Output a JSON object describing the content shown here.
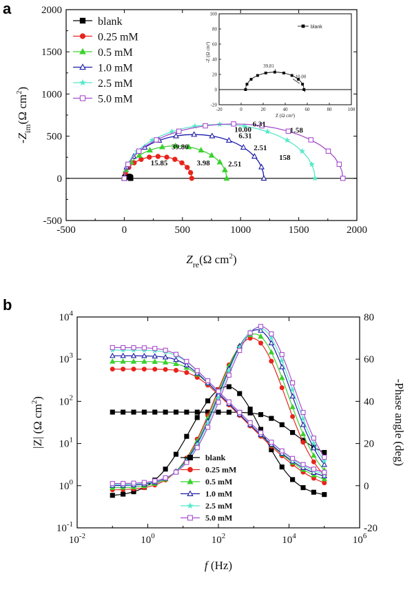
{
  "panel_labels": [
    "a",
    "b"
  ],
  "chart_data": [
    {
      "type": "scatter",
      "id": "a",
      "xlim": [
        -500,
        2000
      ],
      "ylim": [
        -500,
        2000
      ],
      "x_ticks": [
        "-500",
        "0",
        "500",
        "1000",
        "1500",
        "2000"
      ],
      "y_ticks": [
        "-500",
        "0",
        "500",
        "1000",
        "1500",
        "2000"
      ],
      "xlabel": {
        "main": "Z",
        "sub": "re",
        "unit": "(Ω  cm",
        "sup": "2",
        "close": ")"
      },
      "ylabel": {
        "main": "-Z",
        "sub": "im",
        "unit": "(Ω  cm",
        "sup": "2",
        "close": ")"
      },
      "legend": {
        "position": "top-left",
        "entries": [
          "blank",
          "0.25 mM",
          "0.5 mM",
          "1.0 mM",
          "2.5 mM",
          "5.0 mM"
        ]
      },
      "series": [
        {
          "name": "blank",
          "color": "#000000",
          "marker": "square-filled",
          "r0": 2,
          "r1": 55,
          "peak": 24
        },
        {
          "name": "0.25 mM",
          "color": "#e8241c",
          "marker": "circle-filled",
          "r0": 0,
          "r1": 580,
          "peak": 260
        },
        {
          "name": "0.5 mM",
          "color": "#3bd12e",
          "marker": "triangle-filled",
          "r0": 0,
          "r1": 880,
          "peak": 385
        },
        {
          "name": "1.0 mM",
          "color": "#1a1aa8",
          "marker": "triangle-open",
          "r0": 0,
          "r1": 1200,
          "peak": 520
        },
        {
          "name": "2.5 mM",
          "color": "#55e8c8",
          "marker": "star",
          "r0": 0,
          "r1": 1640,
          "peak": 640
        },
        {
          "name": "5.0 mM",
          "color": "#a64dcc",
          "marker": "square-open",
          "r0": 0,
          "r1": 1880,
          "peak": 645
        }
      ],
      "annotations": [
        {
          "text": "10.00",
          "x": 1020,
          "y": 550
        },
        {
          "text": "6.31",
          "x": 1160,
          "y": 615
        },
        {
          "text": "6.31",
          "x": 1040,
          "y": 475
        },
        {
          "text": "1.58",
          "x": 1480,
          "y": 540
        },
        {
          "text": "2.51",
          "x": 1170,
          "y": 335
        },
        {
          "text": "158",
          "x": 1380,
          "y": 220
        },
        {
          "text": "39.80",
          "x": 480,
          "y": 345
        },
        {
          "text": "15.85",
          "x": 300,
          "y": 155
        },
        {
          "text": "3.98",
          "x": 680,
          "y": 155
        },
        {
          "text": "2.51",
          "x": 950,
          "y": 140
        }
      ],
      "inset": {
        "xlim": [
          -20,
          100
        ],
        "ylim": [
          -20,
          100
        ],
        "x_ticks": [
          "-20",
          "0",
          "20",
          "40",
          "60",
          "80",
          "100"
        ],
        "y_ticks": [
          "-20",
          "0",
          "20",
          "40",
          "60",
          "80",
          "100"
        ],
        "xlabel": "Z (Ω  cm²)",
        "ylabel": "-Z (Ω cm²)",
        "legend": "blank",
        "series": {
          "name": "blank",
          "r0": 4,
          "r1": 57,
          "peak": 23
        },
        "annotations": [
          {
            "text": "39.81",
            "x": 25,
            "y": 29
          },
          {
            "text": "10.00",
            "x": 54,
            "y": 15
          }
        ]
      }
    },
    {
      "type": "line",
      "id": "b",
      "xscale": "log",
      "xlim": [
        0.01,
        1000000
      ],
      "x_ticks": [
        {
          "base": "10",
          "exp": "-2"
        },
        {
          "base": "10",
          "exp": "0"
        },
        {
          "base": "10",
          "exp": "2"
        },
        {
          "base": "10",
          "exp": "4"
        },
        {
          "base": "10",
          "exp": "6"
        }
      ],
      "yscale_left": "log",
      "ylim_left": [
        0.1,
        10000
      ],
      "y_ticks_left": [
        {
          "base": "10",
          "exp": "-1"
        },
        {
          "base": "10",
          "exp": "0"
        },
        {
          "base": "10",
          "exp": "1"
        },
        {
          "base": "10",
          "exp": "2"
        },
        {
          "base": "10",
          "exp": "3"
        },
        {
          "base": "10",
          "exp": "4"
        }
      ],
      "ylim_right": [
        -20,
        80
      ],
      "y_ticks_right": [
        "-20",
        "0",
        "20",
        "40",
        "60",
        "80"
      ],
      "xlabel": {
        "main": "f",
        "unit": " (Hz)"
      },
      "ylabel_left": {
        "main": "|Z|",
        "unit": " (Ω cm",
        "sup": "2",
        "close": ")"
      },
      "ylabel_right": "-Phase angle (deg)",
      "legend": {
        "position": "center",
        "entries": [
          "blank",
          "0.25 mM",
          "0.5 mM",
          "1.0 mM",
          "2.5 mM",
          "5.0 mM"
        ]
      },
      "series": [
        {
          "name": "blank",
          "color": "#000000",
          "marker": "square-filled",
          "r0": 3.5,
          "rs": 52,
          "fc": 3000,
          "phase_max": 47,
          "phase_fmax": 180,
          "phase_low": -5
        },
        {
          "name": "0.25 mM",
          "color": "#e8241c",
          "marker": "circle-filled",
          "r0": 0.75,
          "rs": 580,
          "fc": 20,
          "phase_max": 70,
          "phase_fmax": 900,
          "phase_low": -2
        },
        {
          "name": "0.5 mM",
          "color": "#3bd12e",
          "marker": "triangle-filled",
          "r0": 1.0,
          "rs": 880,
          "fc": 13,
          "phase_max": 72,
          "phase_fmax": 1050,
          "phase_low": -1
        },
        {
          "name": "1.0 mM",
          "color": "#1a1aa8",
          "marker": "triangle-open",
          "r0": 1.25,
          "rs": 1200,
          "fc": 9,
          "phase_max": 74,
          "phase_fmax": 1250,
          "phase_low": 0
        },
        {
          "name": "2.5 mM",
          "color": "#55e8c8",
          "marker": "star",
          "r0": 1.4,
          "rs": 1640,
          "fc": 7,
          "phase_max": 75,
          "phase_fmax": 1400,
          "phase_low": 0.5
        },
        {
          "name": "5.0 mM",
          "color": "#a64dcc",
          "marker": "square-open",
          "r0": 1.6,
          "rs": 1880,
          "fc": 6,
          "phase_max": 75.5,
          "phase_fmax": 1600,
          "phase_low": 1
        }
      ]
    }
  ]
}
